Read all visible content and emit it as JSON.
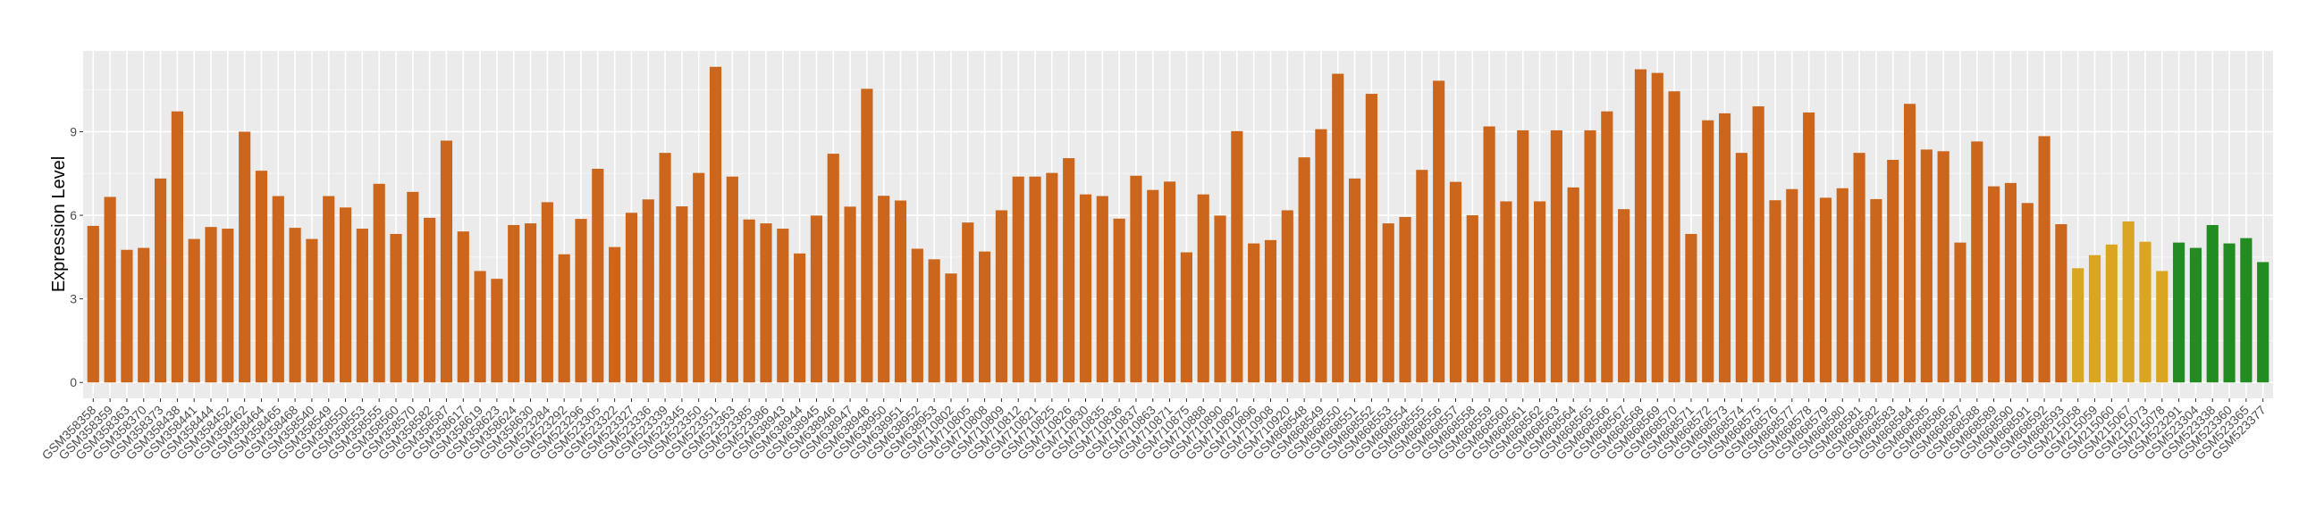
{
  "chart_data": {
    "type": "bar",
    "title": "",
    "xlabel": "",
    "ylabel": "Expression Level",
    "ylim": [
      -0.57,
      11.9
    ],
    "yticks": [
      0,
      3,
      6,
      9
    ],
    "grid": true,
    "legend": "none",
    "series": [
      {
        "color": "#CD661D",
        "categories": [
          "GSM358358",
          "GSM358359",
          "GSM358363",
          "GSM358370",
          "GSM358373",
          "GSM358438",
          "GSM358441",
          "GSM358444",
          "GSM358452",
          "GSM358462",
          "GSM358464",
          "GSM358465",
          "GSM358468",
          "GSM358540",
          "GSM358549",
          "GSM358550",
          "GSM358553",
          "GSM358555",
          "GSM358560",
          "GSM358570",
          "GSM358582",
          "GSM358587",
          "GSM358617",
          "GSM358619",
          "GSM358623",
          "GSM358624",
          "GSM358630",
          "GSM523284",
          "GSM523292",
          "GSM523296",
          "GSM523305",
          "GSM523322",
          "GSM523327",
          "GSM523336",
          "GSM523339",
          "GSM523345",
          "GSM523350",
          "GSM523351",
          "GSM523363",
          "GSM523385",
          "GSM523386",
          "GSM638943",
          "GSM638944",
          "GSM638945",
          "GSM638946",
          "GSM638947",
          "GSM638948",
          "GSM638950",
          "GSM638951",
          "GSM638952",
          "GSM638953",
          "GSM710802",
          "GSM710805",
          "GSM710808",
          "GSM710809",
          "GSM710812",
          "GSM710821",
          "GSM710825",
          "GSM710826",
          "GSM710830",
          "GSM710835",
          "GSM710836",
          "GSM710837",
          "GSM710863",
          "GSM710871",
          "GSM710875",
          "GSM710888",
          "GSM710890",
          "GSM710892",
          "GSM710896",
          "GSM710908",
          "GSM710920",
          "GSM868548",
          "GSM868549",
          "GSM868550",
          "GSM868551",
          "GSM868552",
          "GSM868553",
          "GSM868554",
          "GSM868555",
          "GSM868556",
          "GSM868557",
          "GSM868558",
          "GSM868559",
          "GSM868560",
          "GSM868561",
          "GSM868562",
          "GSM868563",
          "GSM868564",
          "GSM868565",
          "GSM868566",
          "GSM868567",
          "GSM868568",
          "GSM868569",
          "GSM868570",
          "GSM868571",
          "GSM868572",
          "GSM868573",
          "GSM868574",
          "GSM868575",
          "GSM868576",
          "GSM868577",
          "GSM868578",
          "GSM868579",
          "GSM868580",
          "GSM868581",
          "GSM868582",
          "GSM868583",
          "GSM868584",
          "GSM868585",
          "GSM868586",
          "GSM868587",
          "GSM868588",
          "GSM868589",
          "GSM868590",
          "GSM868591",
          "GSM868592",
          "GSM868593"
        ],
        "values": [
          5.62,
          6.66,
          4.76,
          4.83,
          7.32,
          9.73,
          5.15,
          5.58,
          5.52,
          9.0,
          7.6,
          6.69,
          5.55,
          5.15,
          6.69,
          6.28,
          5.52,
          7.13,
          5.33,
          6.84,
          5.91,
          8.68,
          5.42,
          4.0,
          3.72,
          5.65,
          5.71,
          6.47,
          4.6,
          5.87,
          7.67,
          4.86,
          6.09,
          6.57,
          8.24,
          6.32,
          7.52,
          11.33,
          7.39,
          5.85,
          5.71,
          5.52,
          4.63,
          5.99,
          8.21,
          6.31,
          10.54,
          6.7,
          6.53,
          4.8,
          4.42,
          3.91,
          5.74,
          4.7,
          6.18,
          7.39,
          7.39,
          7.52,
          8.05,
          6.75,
          6.69,
          5.88,
          7.42,
          6.91,
          7.21,
          4.67,
          6.75,
          5.99,
          9.02,
          4.99,
          5.11,
          6.18,
          8.08,
          9.09,
          11.08,
          7.32,
          10.36,
          5.71,
          5.94,
          7.63,
          10.83,
          7.2,
          6.0,
          9.19,
          6.5,
          9.05,
          6.5,
          9.05,
          7.0,
          9.05,
          9.73,
          6.22,
          11.24,
          11.11,
          10.45,
          5.33,
          9.41,
          9.66,
          8.24,
          9.91,
          6.54,
          6.94,
          9.69,
          6.63,
          6.97,
          8.24,
          6.58,
          7.99,
          10.0,
          8.36,
          8.3,
          5.02,
          8.65,
          7.04,
          7.16,
          6.44,
          8.84,
          5.68
        ]
      },
      {
        "color": "#DAA520",
        "categories": [
          "GSM215058",
          "GSM215059",
          "GSM215060",
          "GSM215067",
          "GSM215073",
          "GSM215078"
        ],
        "values": [
          4.1,
          4.57,
          4.95,
          5.78,
          5.05,
          4.0
        ]
      },
      {
        "color": "#228B22",
        "categories": [
          "GSM523291",
          "GSM523304",
          "GSM523338",
          "GSM523360",
          "GSM523365",
          "GSM523377"
        ],
        "values": [
          5.02,
          4.83,
          5.65,
          4.99,
          5.18,
          4.32
        ]
      }
    ]
  }
}
